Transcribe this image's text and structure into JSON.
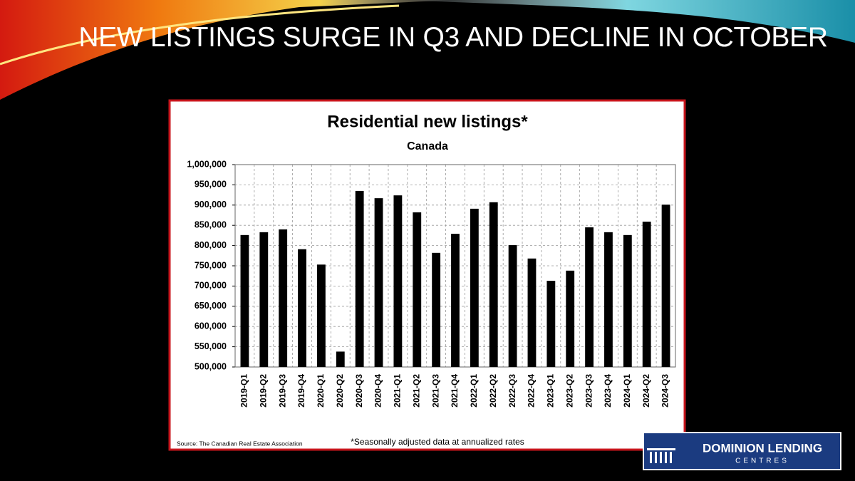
{
  "slide": {
    "title": "NEW LISTINGS SURGE IN Q3 AND DECLINE IN OCTOBER"
  },
  "logo": {
    "line1": "DOMINION LENDING",
    "line2": "CENTRES"
  },
  "chart_data": {
    "type": "bar",
    "title": "Residential new listings*",
    "subtitle": "Canada",
    "categories": [
      "2019-Q1",
      "2019-Q2",
      "2019-Q3",
      "2019-Q4",
      "2020-Q1",
      "2020-Q2",
      "2020-Q3",
      "2020-Q4",
      "2021-Q1",
      "2021-Q2",
      "2021-Q3",
      "2021-Q4",
      "2022-Q1",
      "2022-Q2",
      "2022-Q3",
      "2022-Q4",
      "2023-Q1",
      "2023-Q2",
      "2023-Q3",
      "2023-Q4",
      "2024-Q1",
      "2024-Q2",
      "2024-Q3"
    ],
    "values": [
      826000,
      833000,
      840000,
      791000,
      753000,
      538000,
      935000,
      917000,
      924000,
      882000,
      782000,
      829000,
      891000,
      907000,
      801000,
      768000,
      713000,
      738000,
      845000,
      833000,
      826000,
      859000,
      901000
    ],
    "color": "#000000",
    "ylim": [
      500000,
      1000000
    ],
    "yticks": [
      {
        "value": 500000,
        "label": "500,000"
      },
      {
        "value": 550000,
        "label": "550,000"
      },
      {
        "value": 600000,
        "label": "600,000"
      },
      {
        "value": 650000,
        "label": "650,000"
      },
      {
        "value": 700000,
        "label": "700,000"
      },
      {
        "value": 750000,
        "label": "750,000"
      },
      {
        "value": 800000,
        "label": "800,000"
      },
      {
        "value": 850000,
        "label": "850,000"
      },
      {
        "value": 900000,
        "label": "900,000"
      },
      {
        "value": 950000,
        "label": "950,000"
      },
      {
        "value": 1000000,
        "label": "1,000,000"
      }
    ],
    "grid": true,
    "source": "Source: The Canadian Real Estate Association",
    "note": "*Seasonally adjusted data at annualized rates"
  }
}
